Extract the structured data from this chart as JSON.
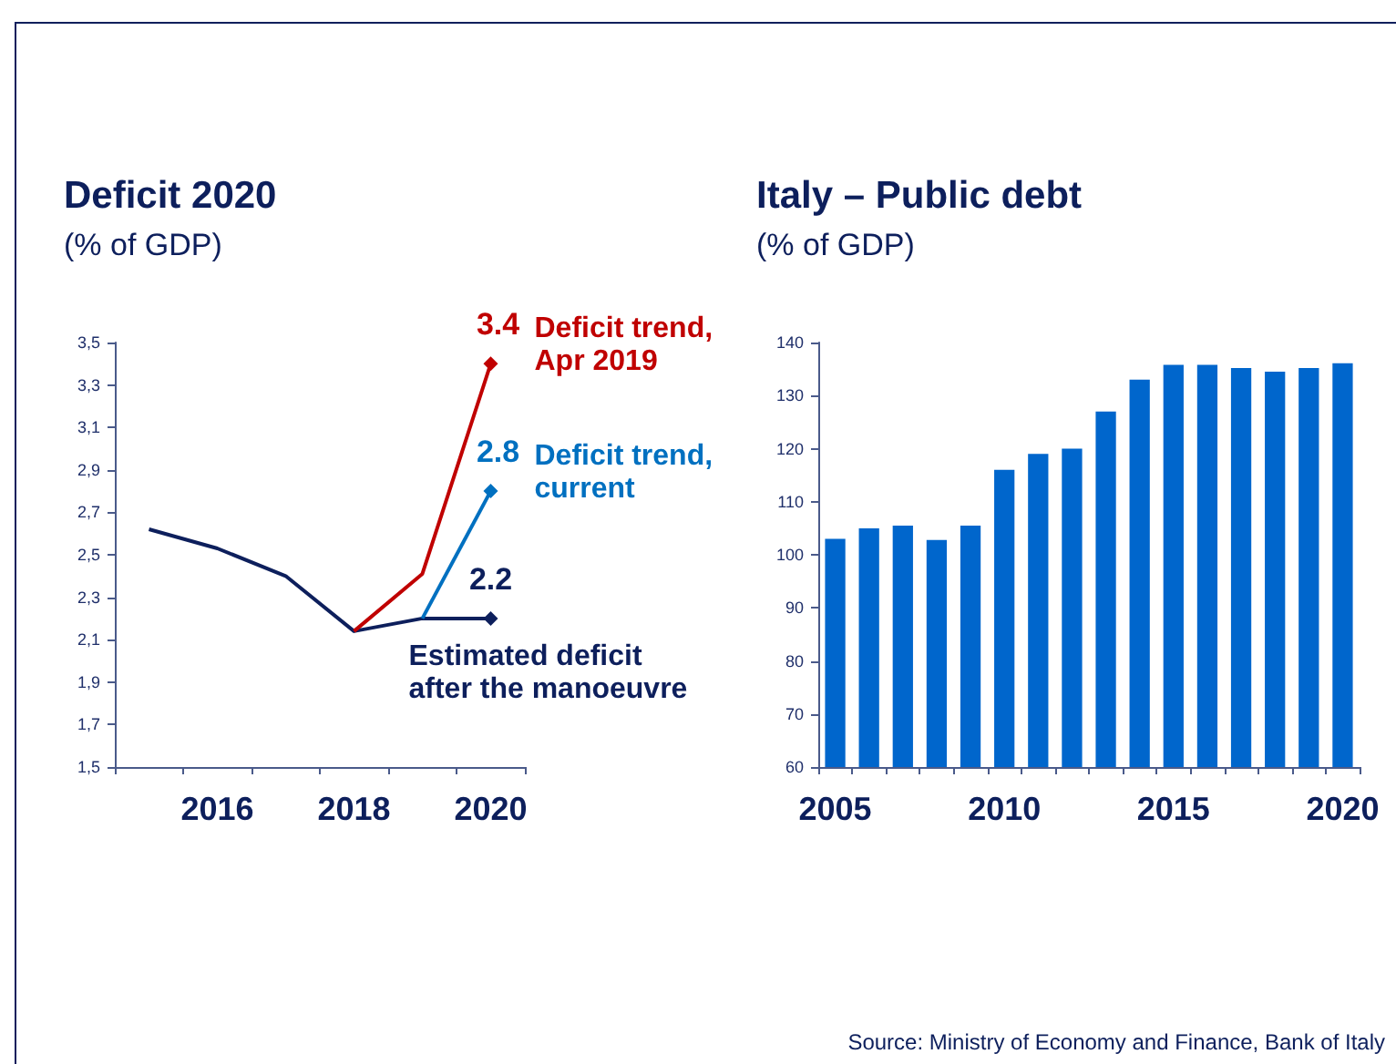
{
  "chart_data": [
    {
      "type": "line",
      "title": "Deficit 2020",
      "subtitle": "(% of GDP)",
      "categories": [
        null,
        "2016",
        null,
        "2018",
        null,
        "2020"
      ],
      "ylim": [
        1.5,
        3.5
      ],
      "yticks": [
        {
          "value": 1.5,
          "label": "1,5"
        },
        {
          "value": 1.7,
          "label": "1,7"
        },
        {
          "value": 1.9,
          "label": "1,9"
        },
        {
          "value": 2.1,
          "label": "2,1"
        },
        {
          "value": 2.3,
          "label": "2,3"
        },
        {
          "value": 2.5,
          "label": "2,5"
        },
        {
          "value": 2.7,
          "label": "2,7"
        },
        {
          "value": 2.9,
          "label": "2,9"
        },
        {
          "value": 3.1,
          "label": "3,1"
        },
        {
          "value": 3.3,
          "label": "3,3"
        },
        {
          "value": 3.5,
          "label": "3,5"
        }
      ],
      "grid": false,
      "series": [
        {
          "name": "Deficit trend, Apr 2019",
          "color": "#c00000",
          "values": [
            null,
            null,
            null,
            2.14,
            2.41,
            3.4
          ],
          "value_labels": [
            null,
            null,
            null,
            null,
            null,
            "3.4"
          ]
        },
        {
          "name": "Deficit trend, current",
          "color": "#0070c0",
          "values": [
            null,
            null,
            null,
            null,
            2.2,
            2.8
          ],
          "value_labels": [
            null,
            null,
            null,
            null,
            null,
            "2.8"
          ]
        },
        {
          "name": "Estimated deficit after the manoeuvre",
          "color": "#0d1f5c",
          "values": [
            2.62,
            2.53,
            2.4,
            2.14,
            2.2,
            2.2
          ],
          "value_labels": [
            null,
            null,
            null,
            null,
            null,
            "2.2"
          ]
        }
      ]
    },
    {
      "type": "bar",
      "title": "Italy – Public debt",
      "subtitle": "(% of GDP)",
      "categories": [
        "2005",
        null,
        null,
        null,
        null,
        "2010",
        null,
        null,
        null,
        null,
        "2015",
        null,
        null,
        null,
        null,
        "2020"
      ],
      "values": [
        103,
        105,
        105.5,
        102.8,
        105.5,
        116,
        119,
        120,
        127,
        133,
        135.8,
        135.8,
        135.2,
        134.5,
        135.2,
        136.1
      ],
      "color": "#0066cc",
      "ylim": [
        60,
        140
      ],
      "yticks": [
        60,
        70,
        80,
        90,
        100,
        110,
        120,
        130,
        140
      ],
      "grid": false,
      "annotations": [
        "Source: Ministry of Economy and Finance, Bank of Italy"
      ]
    }
  ]
}
